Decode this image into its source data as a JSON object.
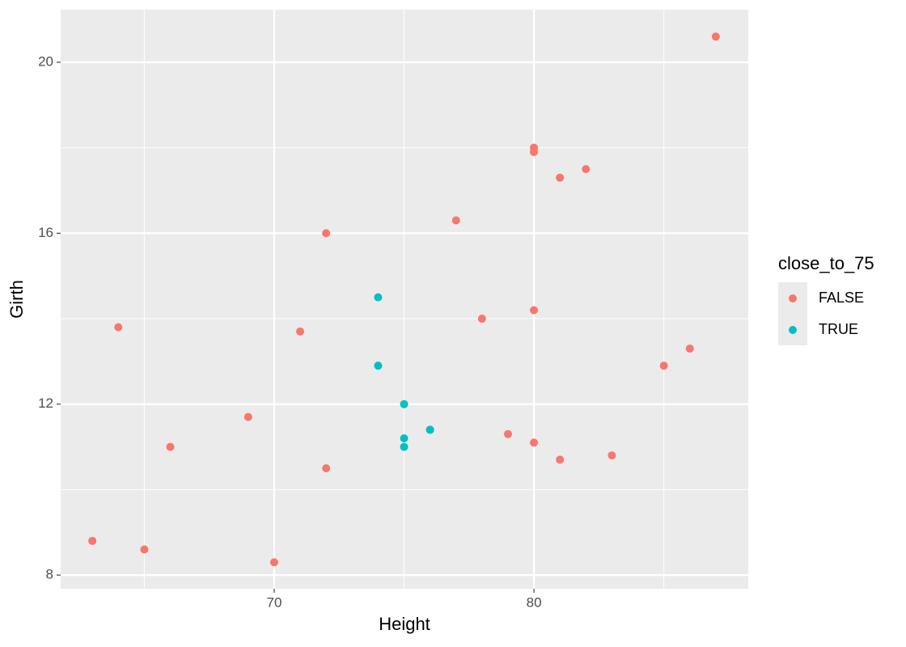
{
  "chart_data": {
    "type": "scatter",
    "x_label": "Height",
    "y_label": "Girth",
    "legend_title": "close_to_75",
    "xlim": [
      61.78,
      88.25
    ],
    "ylim": [
      7.68,
      21.23
    ],
    "xticks": [
      70,
      80
    ],
    "yticks": [
      8,
      12,
      16,
      20
    ],
    "xminor": [
      65,
      75,
      85
    ],
    "yminor": [
      10,
      14,
      18
    ],
    "grid": true,
    "legend": "right",
    "series": [
      {
        "name": "FALSE",
        "color": "#F8766D",
        "x": [
          70,
          65,
          63,
          72,
          81,
          83,
          66,
          80,
          79,
          69,
          85,
          86,
          71,
          64,
          78,
          80,
          72,
          77,
          81,
          82,
          80,
          80,
          80,
          87
        ],
        "values": [
          8.3,
          8.6,
          8.8,
          10.5,
          10.7,
          10.8,
          11.0,
          11.1,
          11.3,
          11.7,
          12.9,
          13.3,
          13.7,
          13.8,
          14.0,
          14.2,
          16.0,
          16.3,
          17.3,
          17.5,
          17.9,
          18.0,
          18.0,
          20.6
        ]
      },
      {
        "name": "TRUE",
        "color": "#00BFC4",
        "x": [
          75,
          75,
          76,
          76,
          75,
          74,
          74
        ],
        "values": [
          11.0,
          11.2,
          11.4,
          11.4,
          12.0,
          12.9,
          14.5
        ]
      }
    ]
  }
}
